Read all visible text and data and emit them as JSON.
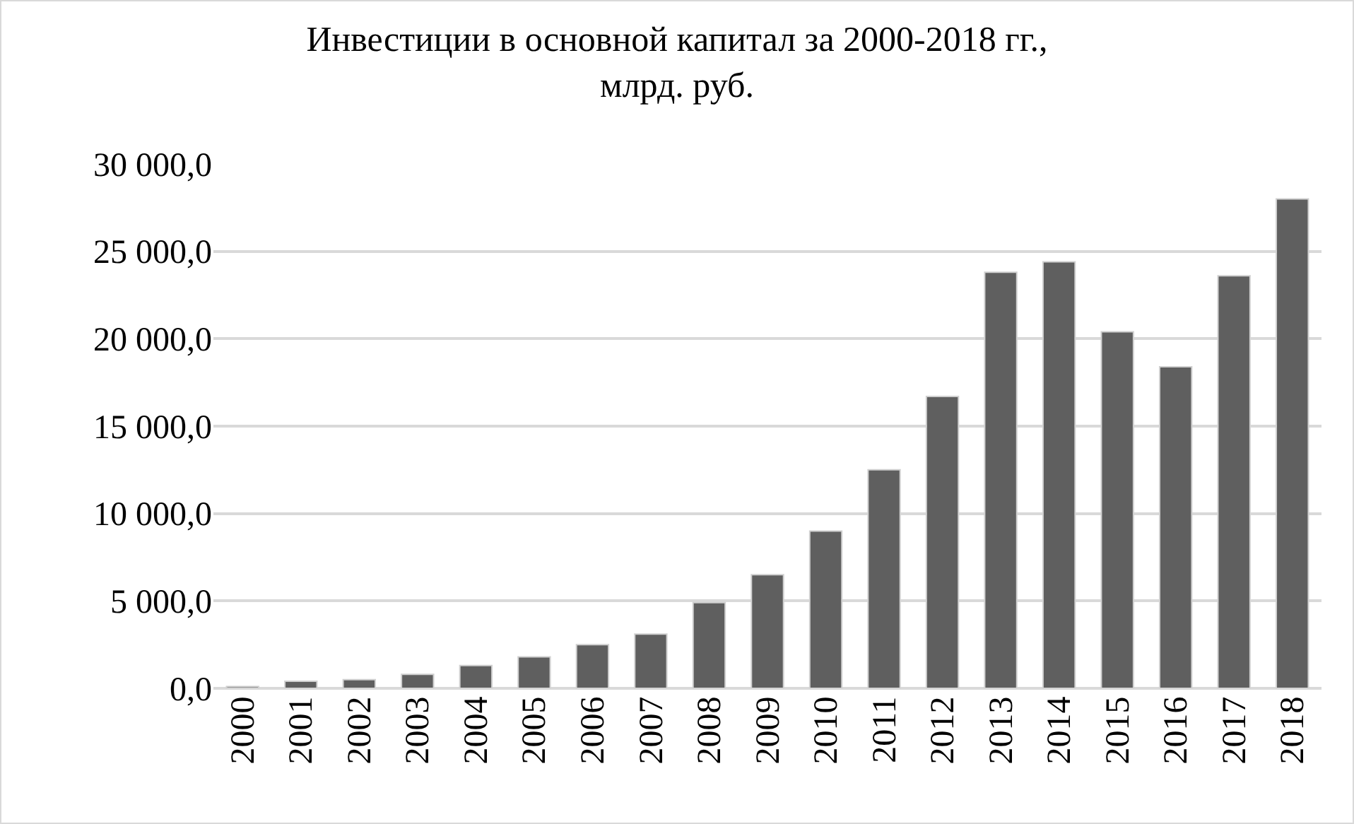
{
  "chart_data": {
    "type": "bar",
    "title": "Инвестиции в основной капитал за 2000-2018 гг.,\nмлрд. руб.",
    "categories": [
      "2000",
      "2001",
      "2002",
      "2003",
      "2004",
      "2005",
      "2006",
      "2007",
      "2008",
      "2009",
      "2010",
      "2011",
      "2012",
      "2013",
      "2014",
      "2015",
      "2016",
      "2017",
      "2018"
    ],
    "values": [
      100,
      400,
      500,
      800,
      1300,
      1800,
      2500,
      3100,
      4900,
      6500,
      9000,
      12500,
      16700,
      23800,
      24400,
      20400,
      18400,
      23600,
      28000
    ],
    "color": "#5f5f5f",
    "ylim": [
      0,
      30000
    ],
    "yticks": [
      {
        "value": 0,
        "label": "0,0"
      },
      {
        "value": 5000,
        "label": "5 000,0"
      },
      {
        "value": 10000,
        "label": "10 000,0"
      },
      {
        "value": 15000,
        "label": "15 000,0"
      },
      {
        "value": 20000,
        "label": "20 000,0"
      },
      {
        "value": 25000,
        "label": "25 000,0"
      },
      {
        "value": 30000,
        "label": "30 000,0"
      }
    ],
    "grid": "y"
  }
}
